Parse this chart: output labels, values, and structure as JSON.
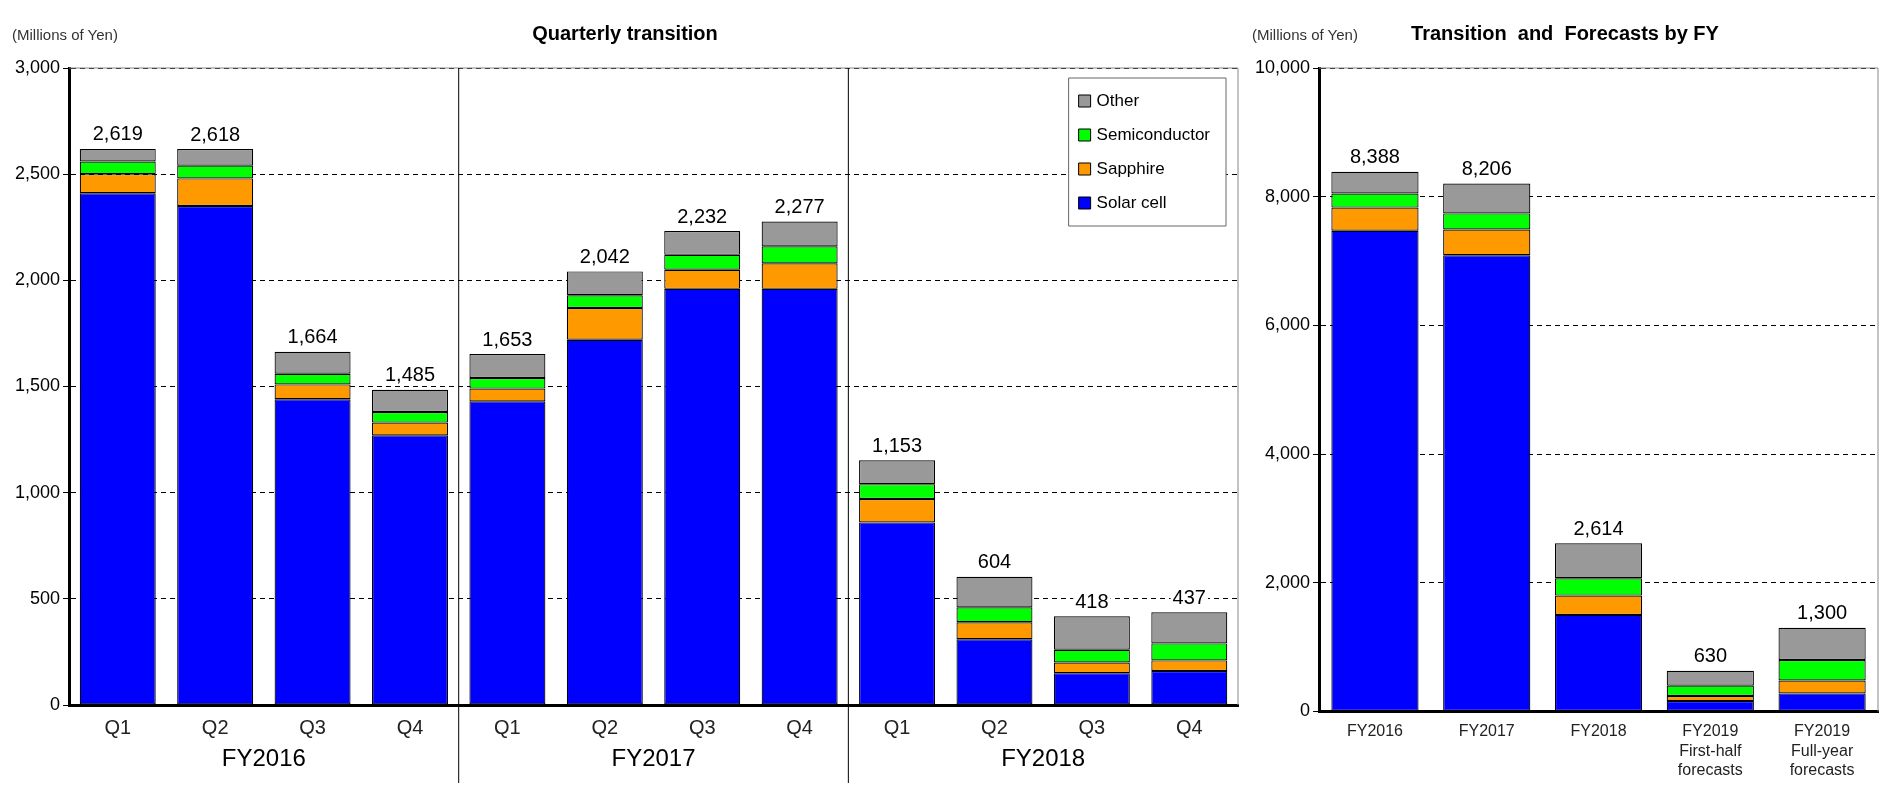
{
  "chart_data": [
    {
      "type": "bar",
      "title": "Quarterly transition",
      "ylabel": "(Millions of Yen)",
      "stacked": true,
      "categories": [
        "Q1",
        "Q2",
        "Q3",
        "Q4",
        "Q1",
        "Q2",
        "Q3",
        "Q4",
        "Q1",
        "Q2",
        "Q3",
        "Q4"
      ],
      "series": [
        {
          "name": "Solar cell",
          "color": "#0000ff",
          "values": [
            2410,
            2350,
            1440,
            1270,
            1430,
            1720,
            1960,
            1960,
            860,
            310,
            150,
            160
          ]
        },
        {
          "name": "Sapphire",
          "color": "#ff9900",
          "values": [
            90,
            130,
            70,
            60,
            60,
            150,
            90,
            120,
            110,
            80,
            50,
            50
          ]
        },
        {
          "name": "Semiconductor",
          "color": "#00ff00",
          "values": [
            60,
            60,
            50,
            50,
            50,
            60,
            70,
            80,
            70,
            70,
            60,
            80
          ]
        },
        {
          "name": "Other",
          "color": "#999999",
          "values": [
            59,
            78,
            104,
            105,
            113,
            112,
            112,
            117,
            113,
            144,
            158,
            147
          ]
        }
      ],
      "totals": [
        "2,619",
        "2,618",
        "1,664",
        "1,485",
        "1,653",
        "2,042",
        "2,232",
        "2,277",
        "1,153",
        "604",
        "418",
        "437"
      ],
      "annotations": [
        "FY2016",
        "FY2017",
        "FY2018"
      ],
      "ylim": [
        0,
        3000
      ],
      "yticks": [
        {
          "value": 0,
          "label": "0"
        },
        {
          "value": 500,
          "label": "500"
        },
        {
          "value": 1000,
          "label": "1,000"
        },
        {
          "value": 1500,
          "label": "1,500"
        },
        {
          "value": 2000,
          "label": "2,000"
        },
        {
          "value": 2500,
          "label": "2,500"
        },
        {
          "value": 3000,
          "label": "3,000"
        }
      ],
      "grid": "y",
      "legend": "top right"
    },
    {
      "type": "bar",
      "title": "Transition  and  Forecasts by FY",
      "ylabel": "(Millions of Yen)",
      "stacked": true,
      "categories": [
        "FY2016",
        "FY2017",
        "FY2018",
        "FY2019\nFirst-half\nforecasts",
        "FY2019\nFull-year\nforecasts"
      ],
      "series": [
        {
          "color": "#0000ff",
          "values": [
            7470,
            7090,
            1500,
            160,
            280
          ]
        },
        {
          "color": "#ff9900",
          "values": [
            360,
            400,
            300,
            80,
            200
          ]
        },
        {
          "color": "#00ff00",
          "values": [
            220,
            250,
            270,
            160,
            320
          ]
        },
        {
          "color": "#999999",
          "values": [
            338,
            466,
            544,
            230,
            500
          ]
        }
      ],
      "totals": [
        "8,388",
        "8,206",
        "2,614",
        "630",
        "1,300"
      ],
      "ylim": [
        0,
        10000
      ],
      "yticks": [
        {
          "value": 0,
          "label": "0"
        },
        {
          "value": 2000,
          "label": "2,000"
        },
        {
          "value": 4000,
          "label": "4,000"
        },
        {
          "value": 6000,
          "label": "6,000"
        },
        {
          "value": 8000,
          "label": "8,000"
        },
        {
          "value": 10000,
          "label": "10,000"
        }
      ],
      "grid": "y",
      "legend": false
    }
  ]
}
